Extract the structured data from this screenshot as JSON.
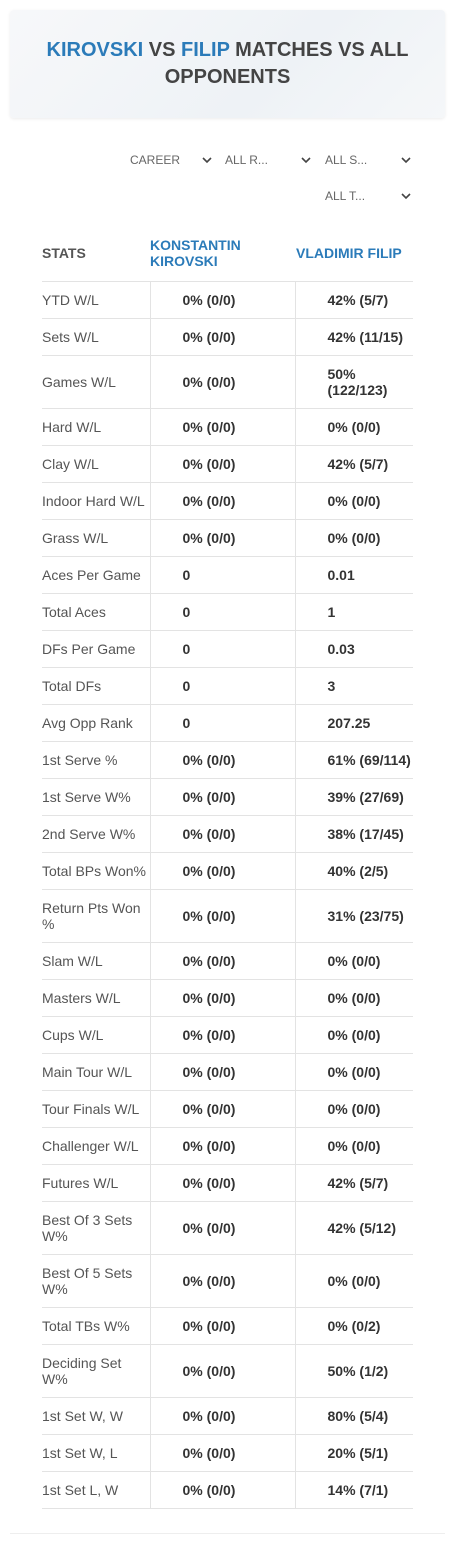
{
  "header": {
    "player1": "KIROVSKI",
    "vs": "VS",
    "player2": "FILIP",
    "suffix": "MATCHES VS ALL OPPONENTS"
  },
  "filters": [
    "CAREER",
    "ALL R...",
    "ALL S...",
    "ALL T..."
  ],
  "table": {
    "columns": [
      "STATS",
      "KONSTANTIN KIROVSKI",
      "VLADIMIR FILIP"
    ],
    "rows": [
      [
        "YTD W/L",
        "0% (0/0)",
        "42% (5/7)"
      ],
      [
        "Sets W/L",
        "0% (0/0)",
        "42% (11/15)"
      ],
      [
        "Games W/L",
        "0% (0/0)",
        "50% (122/123)"
      ],
      [
        "Hard W/L",
        "0% (0/0)",
        "0% (0/0)"
      ],
      [
        "Clay W/L",
        "0% (0/0)",
        "42% (5/7)"
      ],
      [
        "Indoor Hard W/L",
        "0% (0/0)",
        "0% (0/0)"
      ],
      [
        "Grass W/L",
        "0% (0/0)",
        "0% (0/0)"
      ],
      [
        "Aces Per Game",
        "0",
        "0.01"
      ],
      [
        "Total Aces",
        "0",
        "1"
      ],
      [
        "DFs Per Game",
        "0",
        "0.03"
      ],
      [
        "Total DFs",
        "0",
        "3"
      ],
      [
        "Avg Opp Rank",
        "0",
        "207.25"
      ],
      [
        "1st Serve %",
        "0% (0/0)",
        "61% (69/114)"
      ],
      [
        "1st Serve W%",
        "0% (0/0)",
        "39% (27/69)"
      ],
      [
        "2nd Serve W%",
        "0% (0/0)",
        "38% (17/45)"
      ],
      [
        "Total BPs Won%",
        "0% (0/0)",
        "40% (2/5)"
      ],
      [
        "Return Pts Won %",
        "0% (0/0)",
        "31% (23/75)"
      ],
      [
        "Slam W/L",
        "0% (0/0)",
        "0% (0/0)"
      ],
      [
        "Masters W/L",
        "0% (0/0)",
        "0% (0/0)"
      ],
      [
        "Cups W/L",
        "0% (0/0)",
        "0% (0/0)"
      ],
      [
        "Main Tour W/L",
        "0% (0/0)",
        "0% (0/0)"
      ],
      [
        "Tour Finals W/L",
        "0% (0/0)",
        "0% (0/0)"
      ],
      [
        "Challenger W/L",
        "0% (0/0)",
        "0% (0/0)"
      ],
      [
        "Futures W/L",
        "0% (0/0)",
        "42% (5/7)"
      ],
      [
        "Best Of 3 Sets W%",
        "0% (0/0)",
        "42% (5/12)"
      ],
      [
        "Best Of 5 Sets W%",
        "0% (0/0)",
        "0% (0/0)"
      ],
      [
        "Total TBs W%",
        "0% (0/0)",
        "0% (0/2)"
      ],
      [
        "Deciding Set W%",
        "0% (0/0)",
        "50% (1/2)"
      ],
      [
        "1st Set W, W",
        "0% (0/0)",
        "80% (5/4)"
      ],
      [
        "1st Set W, L",
        "0% (0/0)",
        "20% (5/1)"
      ],
      [
        "1st Set L, W",
        "0% (0/0)",
        "14% (7/1)"
      ]
    ]
  }
}
